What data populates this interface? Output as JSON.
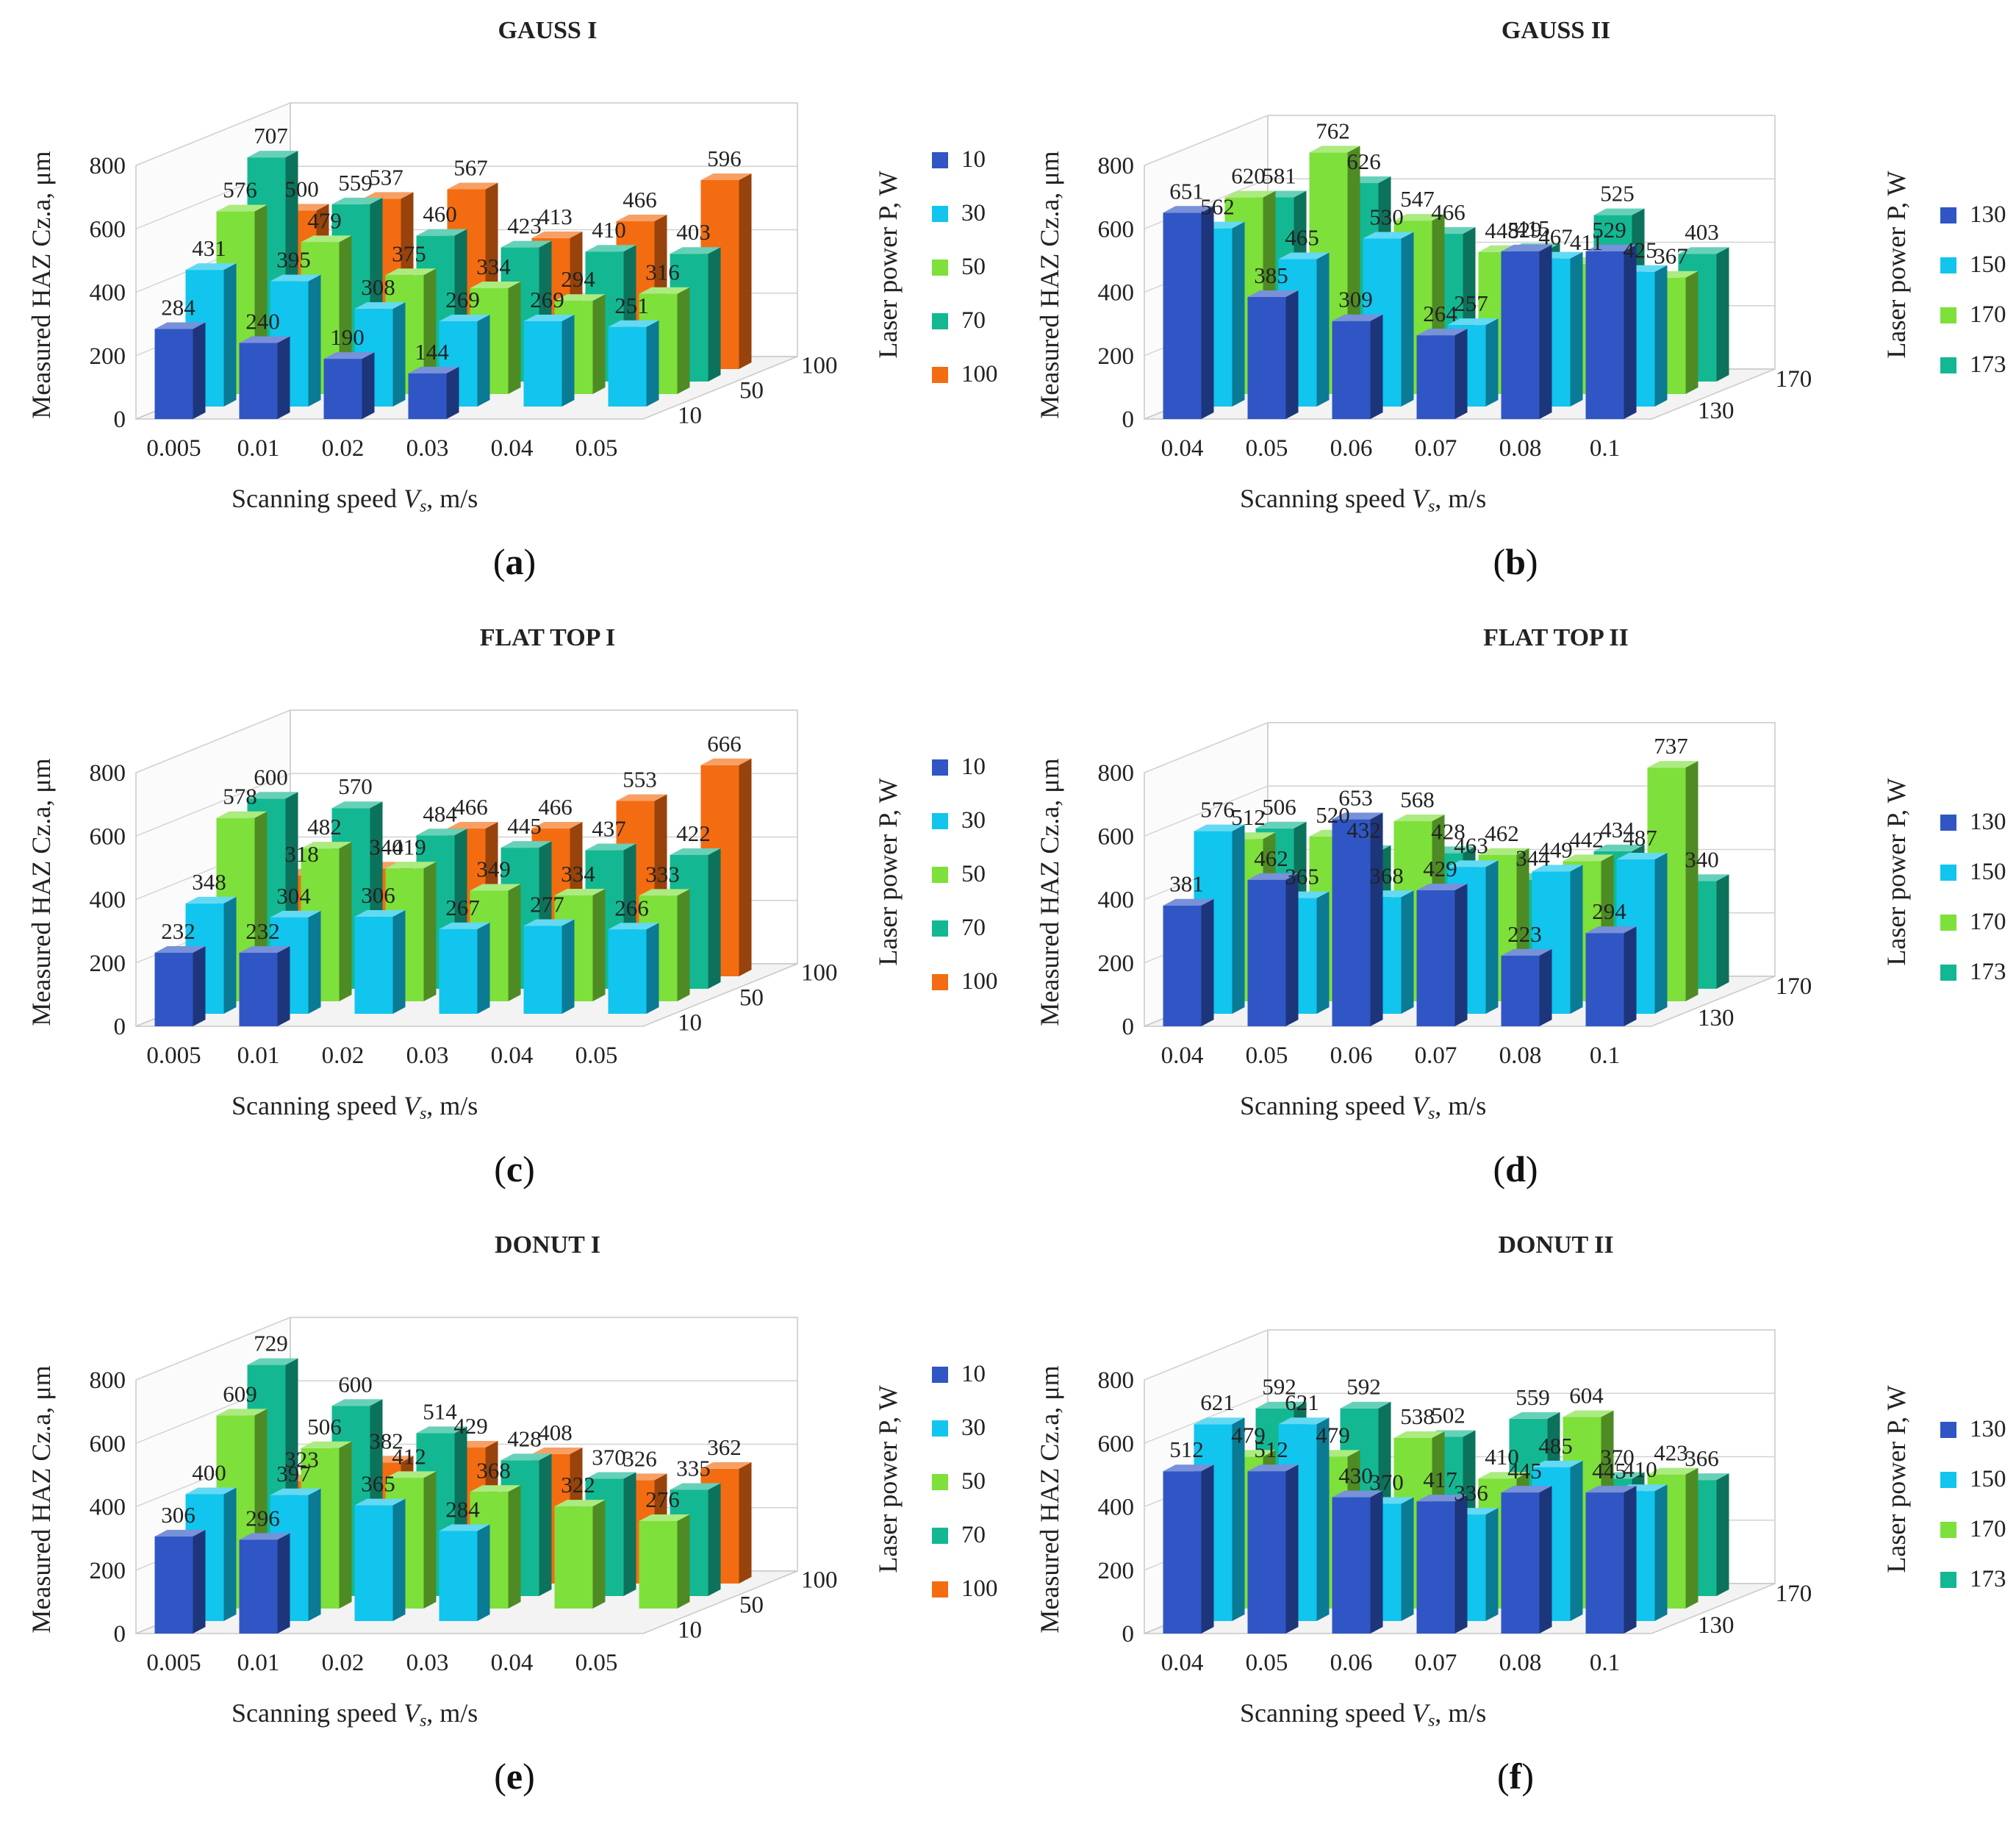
{
  "figure": {
    "series_colors": [
      "#2f56c4",
      "#11c5ee",
      "#7ee03a",
      "#13b892",
      "#f46c11"
    ],
    "panels": [
      {
        "id": "a",
        "caption_letter": "a",
        "xlabel_prefix": "Scanning speed ",
        "xlabel_var": "V",
        "xlabel_sub": "s",
        "xlabel_suffix": ", m/s",
        "ylabel": "Measured HAZ Cz.a, μm",
        "legend_title": "Laser power P, W",
        "chart_data": {
          "type": "bar3d",
          "title": "GAUSS I",
          "categories": [
            "0.005",
            "0.01",
            "0.02",
            "0.03",
            "0.04",
            "0.05"
          ],
          "depth_ticks": [
            "10",
            "50",
            "100"
          ],
          "y_ticks": [
            "0",
            "200",
            "400",
            "600",
            "800"
          ],
          "ylim": [
            0,
            800
          ],
          "series": [
            {
              "name": "10",
              "values": [
                284,
                240,
                190,
                144,
                null,
                null
              ]
            },
            {
              "name": "30",
              "values": [
                431,
                395,
                308,
                269,
                269,
                251
              ]
            },
            {
              "name": "50",
              "values": [
                576,
                479,
                375,
                334,
                294,
                316
              ]
            },
            {
              "name": "70",
              "values": [
                707,
                559,
                460,
                423,
                410,
                403
              ]
            },
            {
              "name": "100",
              "values": [
                500,
                537,
                567,
                413,
                466,
                596
              ]
            }
          ]
        }
      },
      {
        "id": "b",
        "caption_letter": "b",
        "xlabel_prefix": "Scanning speed ",
        "xlabel_var": "V",
        "xlabel_sub": "s",
        "xlabel_suffix": ", m/s",
        "ylabel": "Measured HAZ Cz.a, μm",
        "legend_title": "Laser power P, W",
        "chart_data": {
          "type": "bar3d",
          "title": "GAUSS II",
          "categories": [
            "0.04",
            "0.05",
            "0.06",
            "0.07",
            "0.08",
            "0.1"
          ],
          "depth_ticks": [
            "130",
            "170"
          ],
          "y_ticks": [
            "0",
            "200",
            "400",
            "600",
            "800"
          ],
          "ylim": [
            0,
            800
          ],
          "series": [
            {
              "name": "130",
              "values": [
                651,
                385,
                309,
                264,
                529,
                529
              ]
            },
            {
              "name": "150",
              "values": [
                562,
                465,
                530,
                257,
                467,
                425
              ]
            },
            {
              "name": "170",
              "values": [
                620,
                762,
                547,
                448,
                411,
                367
              ]
            },
            {
              "name": "173",
              "values": [
                581,
                626,
                466,
                415,
                525,
                403
              ]
            }
          ]
        }
      },
      {
        "id": "c",
        "caption_letter": "c",
        "xlabel_prefix": "Scanning speed ",
        "xlabel_var": "V",
        "xlabel_sub": "s",
        "xlabel_suffix": ", m/s",
        "ylabel": "Measured HAZ Cz.a, μm",
        "legend_title": "Laser power P, W",
        "chart_data": {
          "type": "bar3d",
          "title": "FLAT TOP I",
          "categories": [
            "0.005",
            "0.01",
            "0.02",
            "0.03",
            "0.04",
            "0.05"
          ],
          "depth_ticks": [
            "10",
            "50",
            "100"
          ],
          "y_ticks": [
            "0",
            "200",
            "400",
            "600",
            "800"
          ],
          "ylim": [
            0,
            800
          ],
          "series": [
            {
              "name": "10",
              "values": [
                232,
                232,
                null,
                null,
                null,
                null
              ]
            },
            {
              "name": "30",
              "values": [
                348,
                304,
                306,
                267,
                277,
                266
              ]
            },
            {
              "name": "50",
              "values": [
                578,
                482,
                419,
                349,
                334,
                333
              ]
            },
            {
              "name": "70",
              "values": [
                600,
                570,
                484,
                445,
                437,
                422
              ]
            },
            {
              "name": "100",
              "values": [
                318,
                340,
                466,
                466,
                553,
                666
              ]
            }
          ]
        }
      },
      {
        "id": "d",
        "caption_letter": "d",
        "xlabel_prefix": "Scanning speed ",
        "xlabel_var": "V",
        "xlabel_sub": "s",
        "xlabel_suffix": ", m/s",
        "ylabel": "Measured HAZ Cz.a, μm",
        "legend_title": "Laser power P, W",
        "chart_data": {
          "type": "bar3d",
          "title": "FLAT TOP II",
          "categories": [
            "0.04",
            "0.05",
            "0.06",
            "0.07",
            "0.08",
            "0.1"
          ],
          "depth_ticks": [
            "130",
            "170"
          ],
          "y_ticks": [
            "0",
            "200",
            "400",
            "600",
            "800"
          ],
          "ylim": [
            0,
            800
          ],
          "series": [
            {
              "name": "130",
              "values": [
                381,
                462,
                653,
                429,
                223,
                294
              ]
            },
            {
              "name": "150",
              "values": [
                576,
                365,
                368,
                463,
                449,
                487
              ]
            },
            {
              "name": "170",
              "values": [
                512,
                520,
                568,
                462,
                442,
                737
              ]
            },
            {
              "name": "173",
              "values": [
                506,
                432,
                428,
                344,
                434,
                340
              ]
            }
          ]
        }
      },
      {
        "id": "e",
        "caption_letter": "e",
        "xlabel_prefix": "Scanning speed ",
        "xlabel_var": "V",
        "xlabel_sub": "s",
        "xlabel_suffix": ", m/s",
        "ylabel": "Measured HAZ Cz.a, μm",
        "legend_title": "Laser power P, W",
        "chart_data": {
          "type": "bar3d",
          "title": "DONUT I",
          "categories": [
            "0.005",
            "0.01",
            "0.02",
            "0.03",
            "0.04",
            "0.05"
          ],
          "depth_ticks": [
            "10",
            "50",
            "100"
          ],
          "y_ticks": [
            "0",
            "200",
            "400",
            "600",
            "800"
          ],
          "ylim": [
            0,
            800
          ],
          "series": [
            {
              "name": "10",
              "values": [
                306,
                296,
                null,
                null,
                null,
                null
              ]
            },
            {
              "name": "30",
              "values": [
                400,
                397,
                365,
                284,
                null,
                null
              ]
            },
            {
              "name": "50",
              "values": [
                609,
                506,
                412,
                368,
                322,
                276
              ]
            },
            {
              "name": "70",
              "values": [
                729,
                600,
                514,
                428,
                370,
                335
              ]
            },
            {
              "name": "100",
              "values": [
                323,
                382,
                429,
                408,
                326,
                362
              ]
            }
          ]
        }
      },
      {
        "id": "f",
        "caption_letter": "f",
        "xlabel_prefix": "Scanning speed ",
        "xlabel_var": "V",
        "xlabel_sub": "s",
        "xlabel_suffix": ", m/s",
        "ylabel": "Measured HAZ Cz.a, μm",
        "legend_title": "Laser power P, W",
        "chart_data": {
          "type": "bar3d",
          "title": "DONUT II",
          "categories": [
            "0.04",
            "0.05",
            "0.06",
            "0.07",
            "0.08",
            "0.1"
          ],
          "depth_ticks": [
            "130",
            "170"
          ],
          "y_ticks": [
            "0",
            "200",
            "400",
            "600",
            "800"
          ],
          "ylim": [
            0,
            800
          ],
          "series": [
            {
              "name": "130",
              "values": [
                512,
                512,
                430,
                417,
                445,
                445
              ]
            },
            {
              "name": "150",
              "values": [
                621,
                621,
                370,
                336,
                485,
                410
              ]
            },
            {
              "name": "170",
              "values": [
                479,
                479,
                538,
                410,
                604,
                423
              ]
            },
            {
              "name": "173",
              "values": [
                592,
                592,
                502,
                559,
                370,
                366
              ]
            }
          ]
        }
      }
    ]
  }
}
